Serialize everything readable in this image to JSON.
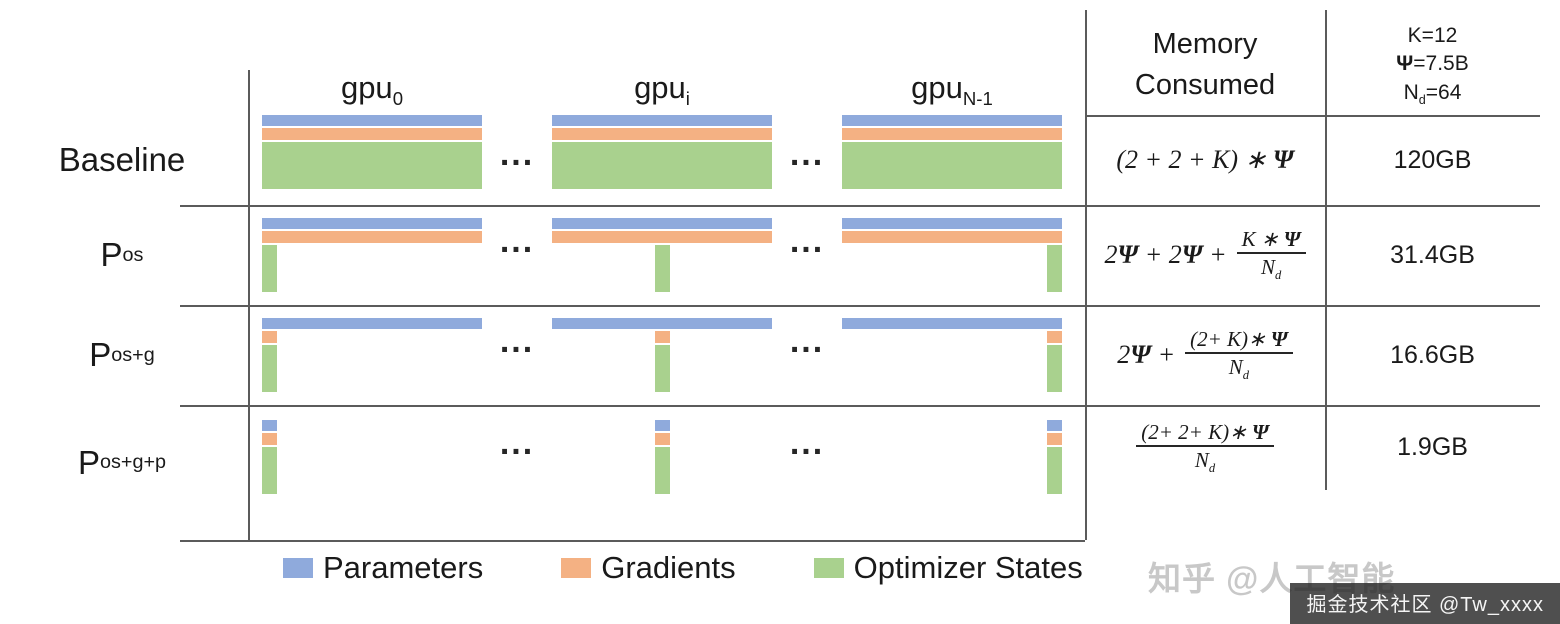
{
  "figure": {
    "dots": "..."
  },
  "header": {
    "gpus": [
      {
        "base": "gpu",
        "sub": "0"
      },
      {
        "base": "gpu",
        "sub": "i"
      },
      {
        "base": "gpu",
        "sub": "N-1"
      }
    ],
    "memory_title": {
      "line1": "Memory",
      "line2": "Consumed"
    },
    "constants": {
      "k": "K=12",
      "psi": "Ψ=7.5B",
      "nd_base": "N",
      "nd_sub": "d",
      "nd_eq": "=64"
    }
  },
  "rows": [
    {
      "label": {
        "base": "Baseline",
        "sub": ""
      },
      "bars": {
        "full": [
          "parameters",
          "gradients",
          "optimizer"
        ],
        "sliver": []
      },
      "formula": {
        "prefix": "(2 + 2 + K) ∗ Ψ",
        "num": "",
        "den_base": "",
        "den_sub": ""
      },
      "memory": "120GB"
    },
    {
      "label": {
        "base": "P",
        "sub": "os"
      },
      "bars": {
        "full": [
          "parameters",
          "gradients"
        ],
        "sliver": [
          "optimizer"
        ]
      },
      "formula": {
        "prefix": "2Ψ + 2Ψ +",
        "num": "K ∗ Ψ",
        "den_base": "N",
        "den_sub": "d"
      },
      "memory": "31.4GB"
    },
    {
      "label": {
        "base": "P",
        "sub": "os+g"
      },
      "bars": {
        "full": [
          "parameters"
        ],
        "sliver": [
          "gradients",
          "optimizer"
        ]
      },
      "formula": {
        "prefix": "2Ψ +",
        "num": "(2+ K)∗ Ψ",
        "den_base": "N",
        "den_sub": "d"
      },
      "memory": "16.6GB"
    },
    {
      "label": {
        "base": "P",
        "sub": "os+g+p"
      },
      "bars": {
        "full": [],
        "sliver": [
          "parameters",
          "gradients",
          "optimizer"
        ]
      },
      "formula": {
        "prefix": "",
        "num": "(2+ 2+ K)∗ Ψ",
        "den_base": "N",
        "den_sub": "d"
      },
      "memory": "1.9GB"
    }
  ],
  "legend": [
    {
      "key": "parameters",
      "label": "Parameters",
      "color": "#8FAADC"
    },
    {
      "key": "gradients",
      "label": "Gradients",
      "color": "#F4B183"
    },
    {
      "key": "optimizer",
      "label": "Optimizer States",
      "color": "#A9D18E"
    }
  ],
  "watermarks": {
    "zhihu": "知乎 @人工智能",
    "juejin": "掘金技术社区 @Tw_xxxx"
  }
}
